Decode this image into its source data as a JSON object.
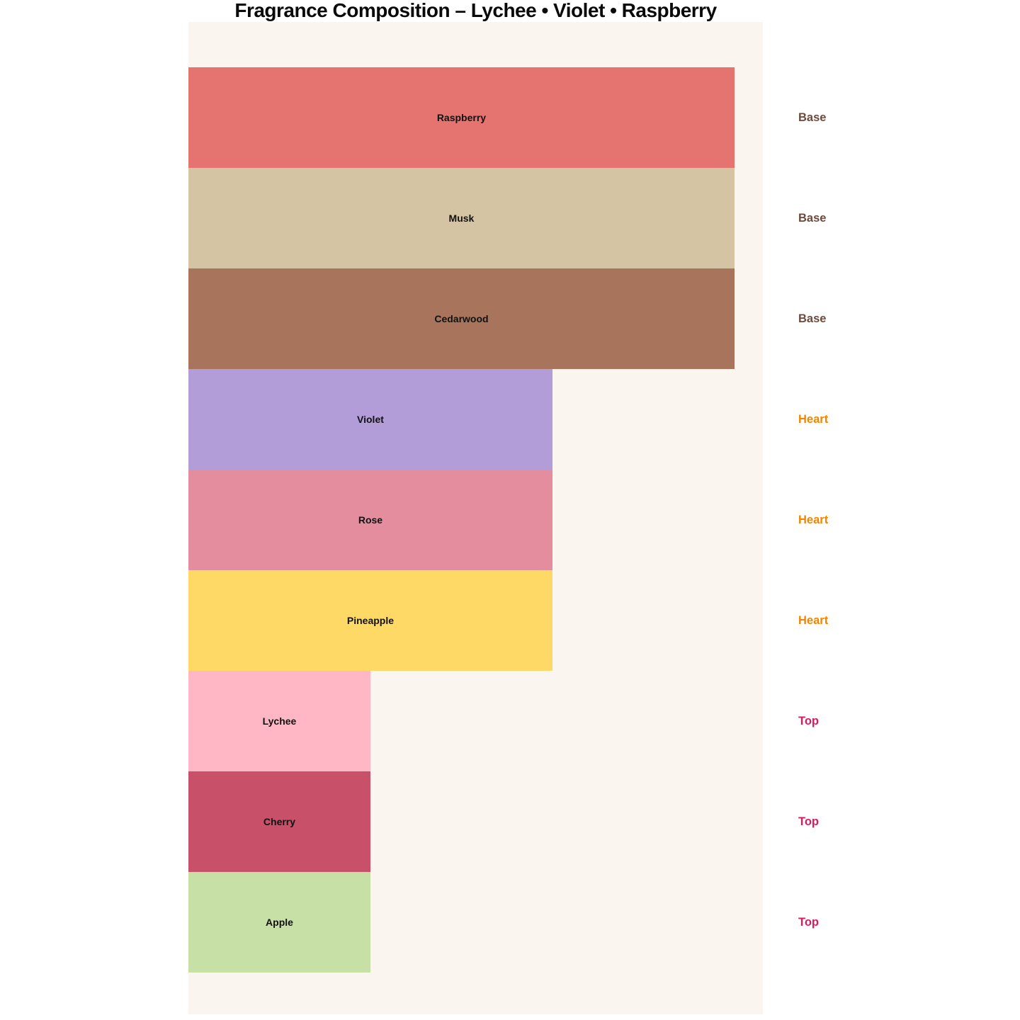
{
  "title": "Fragrance Composition – Lychee • Violet • Raspberry",
  "chart_data": {
    "type": "bar",
    "orientation": "horizontal",
    "title": "Fragrance Composition – Lychee • Violet • Raspberry",
    "xlabel": "",
    "ylabel": "",
    "grid": false,
    "legend_position": "none",
    "axes_visible": false,
    "plot_bg": "#faf5ee",
    "value_max": 3.156,
    "categories": [
      "Raspberry",
      "Musk",
      "Cedarwood",
      "Violet",
      "Rose",
      "Pineapple",
      "Lychee",
      "Cherry",
      "Apple"
    ],
    "items": [
      {
        "label": "Raspberry",
        "level": "Base",
        "value": 3,
        "color": "#e57370"
      },
      {
        "label": "Musk",
        "level": "Base",
        "value": 3,
        "color": "#d5c4a3"
      },
      {
        "label": "Cedarwood",
        "level": "Base",
        "value": 3,
        "color": "#a8745b"
      },
      {
        "label": "Violet",
        "level": "Heart",
        "value": 2,
        "color": "#b39dd8"
      },
      {
        "label": "Rose",
        "level": "Heart",
        "value": 2,
        "color": "#e38d9e"
      },
      {
        "label": "Pineapple",
        "level": "Heart",
        "value": 2,
        "color": "#fed965"
      },
      {
        "label": "Lychee",
        "level": "Top",
        "value": 1,
        "color": "#ffb7c5"
      },
      {
        "label": "Cherry",
        "level": "Top",
        "value": 1,
        "color": "#c85069"
      },
      {
        "label": "Apple",
        "level": "Top",
        "value": 1,
        "color": "#c7e0a5"
      }
    ],
    "level_colors": {
      "Base": "#6e4a3c",
      "Heart": "#f28500",
      "Top": "#e0195f"
    }
  }
}
